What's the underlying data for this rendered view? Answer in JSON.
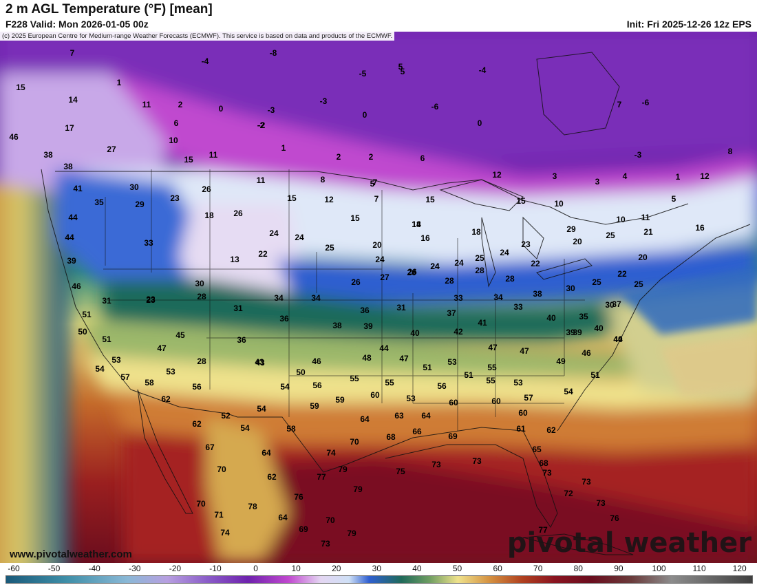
{
  "header": {
    "title": "2 m AGL Temperature (°F) [mean]",
    "valid": "F228 Valid: Mon 2026-01-05 00z",
    "init": "Init: Fri 2025-12-26 12z EPS"
  },
  "map": {
    "copyright": "(c) 2025 European Centre for Medium-range Weather Forecasts (ECMWF). This service is based on data and products of the ECMWF.",
    "website": "www.pivotalweather.com",
    "watermark": "pivotal weather",
    "point_values": [
      7,
      -8,
      -4,
      -5,
      5,
      -4,
      15,
      1,
      14,
      11,
      2,
      0,
      -3,
      -3,
      0,
      -2,
      7,
      -6,
      5,
      -6,
      17,
      6,
      -2,
      0,
      46,
      10,
      38,
      27,
      15,
      11,
      1,
      2,
      2,
      6,
      3,
      7,
      12,
      3,
      4,
      1,
      12,
      8,
      -3,
      38,
      41,
      30,
      23,
      26,
      11,
      8,
      5,
      15,
      35,
      29,
      12,
      7,
      15,
      14,
      15,
      10,
      5,
      44,
      18,
      26,
      15,
      18,
      10,
      11,
      44,
      33,
      24,
      24,
      16,
      18,
      21,
      29,
      25,
      25,
      20,
      23,
      24,
      20,
      16,
      13,
      22,
      24,
      26,
      20,
      39,
      31,
      28,
      27,
      26,
      24,
      28,
      23,
      24,
      24,
      25,
      22,
      46,
      30,
      28,
      26,
      25,
      28,
      30,
      25,
      22,
      31,
      23,
      34,
      34,
      33,
      34,
      36,
      37,
      33,
      30,
      35,
      31,
      36,
      38,
      51,
      39,
      37,
      40,
      40,
      41,
      50,
      38,
      39,
      40,
      42,
      51,
      45,
      36,
      44,
      47,
      43,
      47,
      39,
      40,
      44,
      47,
      28,
      43,
      46,
      48,
      47,
      51,
      53,
      53,
      49,
      46,
      54,
      50,
      54,
      51,
      57,
      58,
      53,
      55,
      55,
      51,
      56,
      55,
      53,
      56,
      56,
      59,
      54,
      60,
      60,
      57,
      60,
      53,
      60,
      55,
      62,
      52,
      59,
      58,
      54,
      54,
      64,
      63,
      64,
      66,
      69,
      62,
      67,
      68,
      61,
      62,
      70,
      74,
      79,
      64,
      62,
      70,
      77,
      75,
      73,
      73,
      65,
      68,
      73,
      70,
      72,
      78,
      79,
      76,
      71,
      73,
      74,
      64,
      69,
      70,
      79,
      77,
      73,
      76,
      73
    ]
  },
  "colorbar": {
    "tick_labels": [
      "-60",
      "-50",
      "-40",
      "-30",
      "-20",
      "-10",
      "0",
      "10",
      "20",
      "30",
      "40",
      "50",
      "60",
      "70",
      "80",
      "90",
      "100",
      "110",
      "120"
    ],
    "tick_values": [
      -60,
      -50,
      -40,
      -30,
      -20,
      -10,
      0,
      10,
      20,
      30,
      40,
      50,
      60,
      70,
      80,
      90,
      100,
      110,
      120
    ],
    "min": -60,
    "max": 125
  },
  "colors": {
    "cold_purple": "#6a1fa8",
    "magenta": "#d04fd8",
    "light_blue": "#d4e6f7",
    "blue": "#2f5fd0",
    "teal": "#1f6a5a",
    "yellow": "#f0e690",
    "orange": "#c9742e",
    "red": "#a52020",
    "dark_red": "#6a0d1e"
  }
}
